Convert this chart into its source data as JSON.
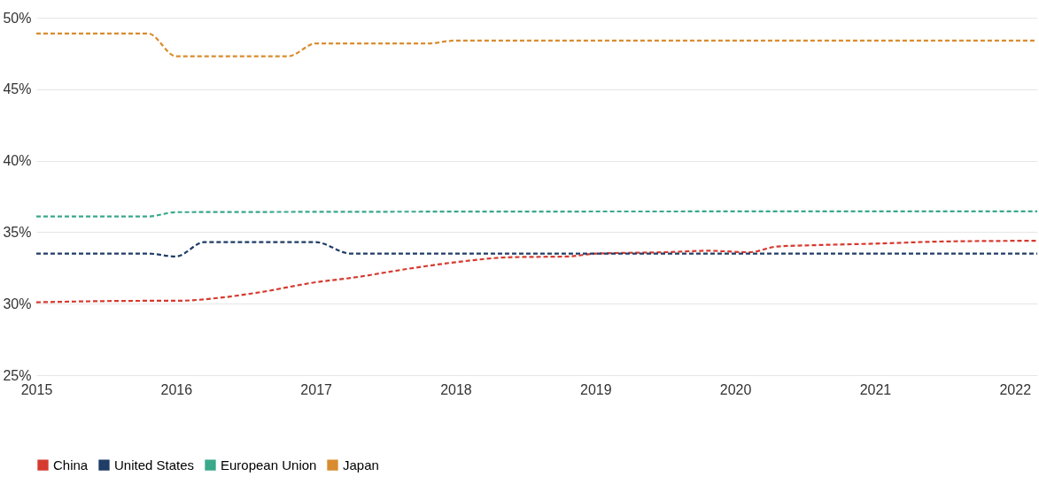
{
  "chart_data": {
    "type": "line",
    "xlim": [
      2015,
      2022.16
    ],
    "xticks": [
      2015,
      2016,
      2017,
      2018,
      2019,
      2020,
      2021,
      2022
    ],
    "ylim": [
      25,
      50
    ],
    "yticks": [
      {
        "value": 25,
        "label": "25%"
      },
      {
        "value": 30,
        "label": "30%"
      },
      {
        "value": 35,
        "label": "35%"
      },
      {
        "value": 40,
        "label": "40%"
      },
      {
        "value": 45,
        "label": "45%"
      },
      {
        "value": 50,
        "label": "50%"
      }
    ],
    "grid": "y",
    "legend": "bottom",
    "line_style": "dashed",
    "marker": "none",
    "series": [
      {
        "name": "China",
        "color": "#d63a2f",
        "x": [
          2015,
          2015.8,
          2016,
          2016.3,
          2016.6,
          2017,
          2017.25,
          2017.7,
          2018,
          2018.4,
          2018.8,
          2019,
          2019.5,
          2019.8,
          2020.1,
          2020.3,
          2020.6,
          2021,
          2021.5,
          2022.16
        ],
        "values": [
          30.1,
          30.2,
          30.2,
          30.4,
          30.8,
          31.5,
          31.8,
          32.5,
          32.9,
          33.25,
          33.3,
          33.5,
          33.6,
          33.7,
          33.6,
          34.0,
          34.1,
          34.2,
          34.35,
          34.4
        ]
      },
      {
        "name": "United States",
        "color": "#1f3d66",
        "x": [
          2015,
          2015.8,
          2016,
          2016.2,
          2017,
          2017.25,
          2022.16
        ],
        "values": [
          33.5,
          33.5,
          33.3,
          34.3,
          34.3,
          33.5,
          33.5
        ]
      },
      {
        "name": "European Union",
        "color": "#3aa88a",
        "x": [
          2015,
          2015.8,
          2016,
          2020,
          2022.16
        ],
        "values": [
          36.1,
          36.1,
          36.4,
          36.45,
          36.45
        ]
      },
      {
        "name": "Japan",
        "color": "#d98c2e",
        "x": [
          2015,
          2015.8,
          2016,
          2016.8,
          2017,
          2017.8,
          2018,
          2022.16
        ],
        "values": [
          48.9,
          48.9,
          47.3,
          47.3,
          48.2,
          48.2,
          48.4,
          48.4
        ]
      }
    ]
  }
}
